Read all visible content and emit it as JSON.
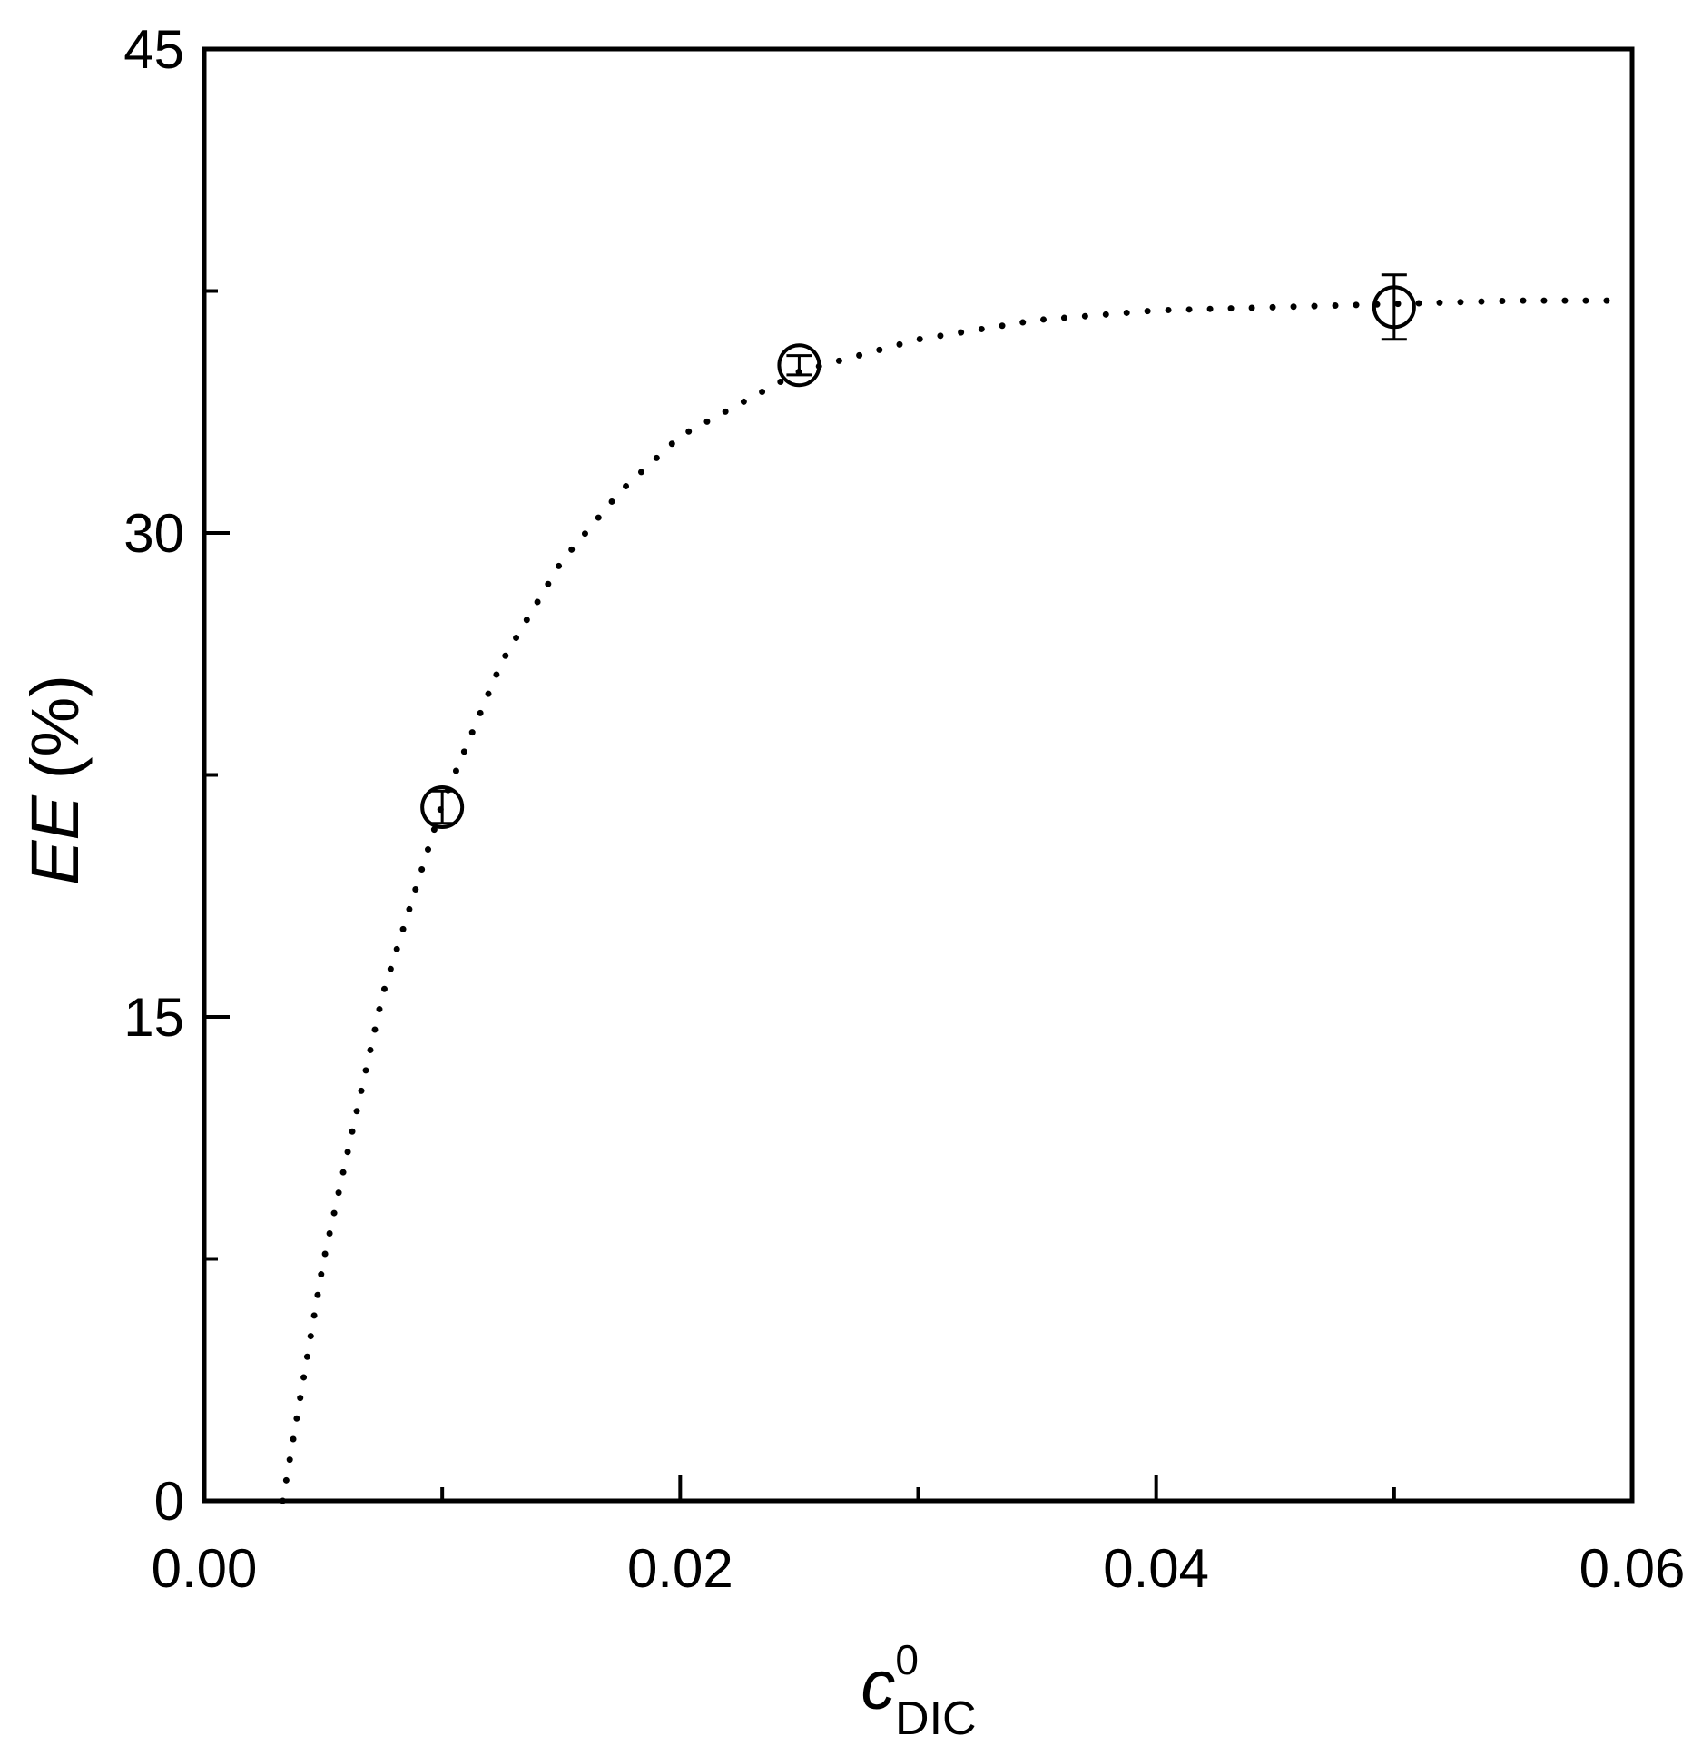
{
  "chart_data": {
    "type": "scatter",
    "x_label": {
      "main": "c",
      "sup": "0",
      "sub": "DIC"
    },
    "y_label": {
      "var": "EE",
      "unit": "(%)"
    },
    "xlim": [
      0,
      0.06
    ],
    "ylim": [
      0,
      45
    ],
    "xticks": [
      {
        "value": 0,
        "label": "0.00"
      },
      0.02,
      0.04,
      0.06
    ],
    "yticks": [
      0,
      15,
      30,
      45
    ],
    "xminor_ticks": [
      0.01,
      0.03,
      0.05
    ],
    "yminor_ticks": [
      7.5,
      22.5,
      37.5
    ],
    "series": [
      {
        "kind": "points",
        "color": "#000000",
        "x": [
          0.01,
          0.025,
          0.05
        ],
        "values": [
          21.5,
          35.2,
          37.0
        ],
        "errors": [
          0.5,
          0.3,
          1.0
        ]
      },
      {
        "kind": "fit",
        "color": "#000000",
        "x": [
          0.0033,
          0.005,
          0.0075,
          0.01,
          0.0125,
          0.015,
          0.0175,
          0.02,
          0.025,
          0.03,
          0.035,
          0.04,
          0.045,
          0.05,
          0.055,
          0.059
        ],
        "values": [
          0,
          7.4,
          15.7,
          21.6,
          26.0,
          29.1,
          31.3,
          33.0,
          35.0,
          36.0,
          36.6,
          36.9,
          37.0,
          37.1,
          37.2,
          37.2
        ]
      }
    ]
  }
}
